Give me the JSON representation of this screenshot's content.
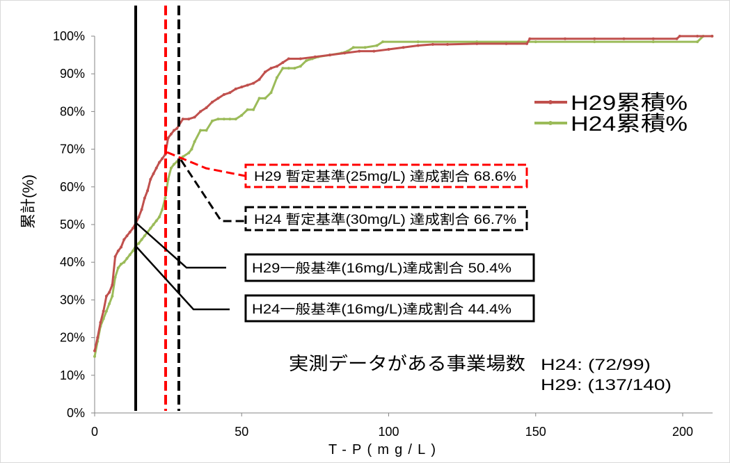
{
  "chart_data": {
    "type": "line",
    "title": "",
    "xlabel": "T-P(mg/L)",
    "ylabel": "累計(%)",
    "xlim": [
      0,
      210
    ],
    "ylim": [
      0,
      100
    ],
    "x_ticks": [
      0,
      50,
      100,
      150,
      200
    ],
    "x_tick_labels": [
      "0",
      "50",
      "100",
      "150",
      "200"
    ],
    "y_ticks": [
      0,
      10,
      20,
      30,
      40,
      50,
      60,
      70,
      80,
      90,
      100
    ],
    "y_tick_labels": [
      "0%",
      "10%",
      "20%",
      "30%",
      "40%",
      "50%",
      "60%",
      "70%",
      "80%",
      "90%",
      "100%"
    ],
    "grid": false,
    "legend_position": "top-right",
    "series": [
      {
        "name": "H29累積%",
        "color": "#c0504d",
        "x": [
          0,
          1,
          2,
          3,
          4,
          5,
          6,
          7,
          8,
          9,
          10,
          11,
          12,
          13,
          14,
          15,
          16,
          17,
          18,
          19,
          20,
          21,
          22,
          23,
          24,
          25,
          26,
          27,
          28,
          30,
          32,
          34,
          36,
          38,
          40,
          42,
          44,
          46,
          48,
          50,
          52,
          54,
          56,
          58,
          60,
          62,
          64,
          66,
          70,
          75,
          80,
          85,
          90,
          95,
          100,
          105,
          110,
          115,
          120,
          130,
          140,
          147,
          148,
          160,
          170,
          180,
          190,
          198,
          199,
          205,
          210
        ],
        "y": [
          16.5,
          20,
          24,
          27,
          31,
          32,
          34,
          41.5,
          43,
          44,
          46,
          47,
          48,
          49,
          50.4,
          52,
          54,
          57,
          59,
          62,
          63.5,
          65,
          66.5,
          67.5,
          68.6,
          73,
          74,
          75,
          75.5,
          78,
          78,
          78.5,
          80,
          81,
          82.5,
          83.5,
          84.5,
          85,
          86,
          86.5,
          87,
          87.5,
          88.5,
          90.5,
          91.5,
          92,
          93,
          94,
          94,
          94.5,
          95,
          95.5,
          96,
          96,
          96.5,
          97,
          97.5,
          97.8,
          97.8,
          98,
          98,
          98,
          99.3,
          99.3,
          99.3,
          99.3,
          99.3,
          99.3,
          100,
          100,
          100
        ]
      },
      {
        "name": "H24累積%",
        "color": "#9bbb59",
        "x": [
          0,
          1,
          2,
          3,
          4,
          5,
          6,
          7,
          8,
          9,
          10,
          11,
          12,
          13,
          14,
          15,
          16,
          17,
          18,
          19,
          20,
          21,
          22,
          23,
          24,
          25,
          26,
          27,
          28,
          30,
          32,
          33,
          34,
          36,
          38,
          40,
          42,
          44,
          46,
          48,
          50,
          52,
          54,
          56,
          58,
          60,
          62,
          64,
          66,
          68,
          70,
          72,
          74,
          76,
          80,
          84,
          86,
          88,
          92,
          96,
          98,
          110,
          130,
          150,
          170,
          190,
          205,
          207,
          210
        ],
        "y": [
          15,
          19,
          23,
          25,
          27,
          29,
          31,
          36,
          38.5,
          39.5,
          40,
          41,
          42,
          43,
          44.4,
          45,
          46,
          47,
          48,
          49,
          50,
          51,
          52,
          54,
          57,
          62,
          65,
          66,
          66.7,
          68,
          69,
          70,
          72,
          75,
          75,
          77.5,
          78,
          78,
          78,
          78,
          79,
          80.5,
          80.5,
          83.5,
          83.5,
          85,
          89,
          91.5,
          91.5,
          91.5,
          92,
          93.5,
          94,
          94.5,
          95,
          95.5,
          96,
          97,
          97,
          97.5,
          98.5,
          98.5,
          98.5,
          98.5,
          98.5,
          98.5,
          98.5,
          100,
          100
        ]
      }
    ]
  },
  "annotations": {
    "h29_provisional": "H29 暫定基準(25mg/L) 達成割合 68.6%",
    "h24_provisional": "H24 暫定基準(30mg/L) 達成割合 66.7%",
    "h29_general": "H29一般基準(16mg/L)達成割合 50.4%",
    "h24_general": "H24一般基準(16mg/L)達成割合 44.4%",
    "count_label": "実測データがある事業場数",
    "count_h24": "H24: (72/99)",
    "count_h29": "H29: (137/140)"
  },
  "colors": {
    "reference_red": "#ff0000",
    "reference_black": "#000000",
    "frame": "#d9d9d9"
  }
}
